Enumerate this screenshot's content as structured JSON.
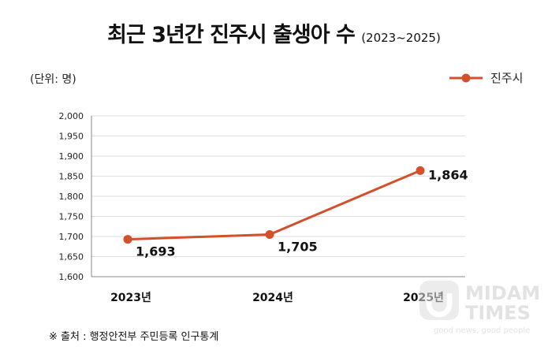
{
  "chart_data": {
    "type": "line",
    "title": "최근 3년간 진주시 출생아 수",
    "subtitle": "(2023~2025)",
    "unit_label": "(단위: 명)",
    "categories": [
      "2023년",
      "2024년",
      "2025년"
    ],
    "series": [
      {
        "name": "진주시",
        "values": [
          1693,
          1705,
          1864
        ],
        "color": "#d4502a"
      }
    ],
    "data_labels": [
      "1,693",
      "1,705",
      "1,864"
    ],
    "ylim": [
      1600,
      2000
    ],
    "yticks": [
      "1,600",
      "1,650",
      "1,700",
      "1,750",
      "1,800",
      "1,850",
      "1,900",
      "1,950",
      "2,000"
    ],
    "grid": true,
    "legend": "top-right"
  },
  "source": "※ 출처 : 행정안전부 주민등록 인구통계",
  "watermark": {
    "brand": "MIDAM TIMES",
    "tagline": "good news, good people"
  }
}
